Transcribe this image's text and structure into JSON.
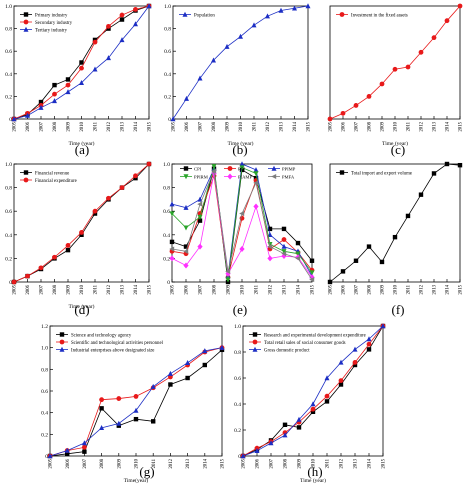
{
  "chart_data": [
    {
      "id": "a",
      "type": "line",
      "panel_label": "(a)",
      "xlabel": "Time (year)",
      "ylabel": "",
      "categories": [
        "2005",
        "2006",
        "2007",
        "2008",
        "2009",
        "2010",
        "2011",
        "2012",
        "2013",
        "2014",
        "2015"
      ],
      "ylim": [
        0,
        1.0
      ],
      "yticks": [
        "0",
        "0.2",
        "0.4",
        "0.6",
        "0.8",
        "1.0"
      ],
      "legend_position": "top-left",
      "series": [
        {
          "name": "Primary industry",
          "color": "#000000",
          "marker": "square",
          "values": [
            0,
            0.04,
            0.15,
            0.3,
            0.35,
            0.5,
            0.7,
            0.8,
            0.88,
            0.96,
            1.0
          ]
        },
        {
          "name": "Secondary industry",
          "color": "#e8191a",
          "marker": "circle",
          "values": [
            0,
            0.05,
            0.12,
            0.22,
            0.3,
            0.45,
            0.68,
            0.82,
            0.92,
            0.97,
            1.0
          ]
        },
        {
          "name": "Tertiary industry",
          "color": "#1c2ec4",
          "marker": "triangle",
          "values": [
            0,
            0.03,
            0.1,
            0.16,
            0.24,
            0.32,
            0.44,
            0.54,
            0.7,
            0.84,
            1.0
          ]
        }
      ]
    },
    {
      "id": "b",
      "type": "line",
      "panel_label": "(b)",
      "xlabel": "Time (year)",
      "ylabel": "",
      "categories": [
        "2005",
        "2006",
        "2007",
        "2008",
        "2009",
        "2010",
        "2011",
        "2012",
        "2013",
        "2014",
        "2015"
      ],
      "ylim": [
        0,
        1.0
      ],
      "yticks": [
        "0",
        "0.2",
        "0.4",
        "0.6",
        "0.8",
        "1.0"
      ],
      "legend_position": "top-left",
      "series": [
        {
          "name": "Population",
          "color": "#1c2ec4",
          "marker": "triangle",
          "values": [
            0,
            0.18,
            0.36,
            0.52,
            0.64,
            0.73,
            0.83,
            0.91,
            0.96,
            0.98,
            1.0
          ]
        }
      ]
    },
    {
      "id": "c",
      "type": "line",
      "panel_label": "(c)",
      "xlabel": "Time (year)",
      "ylabel": "",
      "categories": [
        "2005",
        "2006",
        "2007",
        "2008",
        "2009",
        "2010",
        "2011",
        "2012",
        "2013",
        "2014",
        "2015"
      ],
      "ylim": [
        0,
        1.0
      ],
      "yticks": [],
      "legend_position": "top-left",
      "series": [
        {
          "name": "Investment in the fixed assets",
          "color": "#e8191a",
          "marker": "circle",
          "values": [
            0,
            0.05,
            0.12,
            0.2,
            0.31,
            0.44,
            0.46,
            0.59,
            0.72,
            0.87,
            1.0
          ]
        }
      ]
    },
    {
      "id": "d",
      "type": "line",
      "panel_label": "(d)",
      "xlabel": "Time (year)",
      "ylabel": "",
      "categories": [
        "2005",
        "2006",
        "2007",
        "2008",
        "2009",
        "2010",
        "2011",
        "2012",
        "2013",
        "2014",
        "2015"
      ],
      "ylim": [
        0,
        1.0
      ],
      "yticks": [
        "0",
        "0.2",
        "0.4",
        "0.6",
        "0.8",
        "1.0"
      ],
      "legend_position": "top-left",
      "series": [
        {
          "name": "Financial revenue",
          "color": "#000000",
          "marker": "square",
          "values": [
            0,
            0.05,
            0.11,
            0.2,
            0.27,
            0.4,
            0.58,
            0.7,
            0.8,
            0.88,
            1.0
          ]
        },
        {
          "name": "Financial expenditure",
          "color": "#e8191a",
          "marker": "circle",
          "values": [
            0,
            0.05,
            0.12,
            0.21,
            0.31,
            0.42,
            0.6,
            0.71,
            0.8,
            0.9,
            1.0
          ]
        }
      ]
    },
    {
      "id": "e",
      "type": "line",
      "panel_label": "(e)",
      "xlabel": "",
      "ylabel": "",
      "categories": [
        "2005",
        "2006",
        "2007",
        "2008",
        "2009",
        "2010",
        "2011",
        "2012",
        "2013",
        "2014",
        "2015"
      ],
      "ylim": [
        0,
        1.0
      ],
      "yticks": [
        "0",
        "0.2",
        "0.4",
        "0.6",
        "0.8",
        "1.0"
      ],
      "legend_position": "top",
      "series": [
        {
          "name": "CPI",
          "color": "#000000",
          "marker": "square",
          "values": [
            0.34,
            0.3,
            0.52,
            0.96,
            0.0,
            0.95,
            0.88,
            0.45,
            0.45,
            0.33,
            0.18
          ]
        },
        {
          "name": "RPI",
          "color": "#e8191a",
          "marker": "circle",
          "values": [
            0.26,
            0.24,
            0.58,
            0.9,
            0.04,
            0.54,
            0.86,
            0.28,
            0.36,
            0.25,
            0.1
          ]
        },
        {
          "name": "PPIMP",
          "color": "#1c2ec4",
          "marker": "triangle",
          "values": [
            0.66,
            0.63,
            0.7,
            0.96,
            0.05,
            1.0,
            0.95,
            0.4,
            0.3,
            0.26,
            0.05
          ]
        },
        {
          "name": "PPIRM",
          "color": "#2aa52a",
          "marker": "triangle-down",
          "values": [
            0.58,
            0.46,
            0.55,
            0.98,
            0.02,
            0.97,
            0.92,
            0.32,
            0.26,
            0.24,
            0.08
          ]
        },
        {
          "name": "PIAMP",
          "color": "#ff30ff",
          "marker": "diamond",
          "values": [
            0.2,
            0.14,
            0.3,
            0.92,
            0.07,
            0.28,
            0.64,
            0.2,
            0.22,
            0.21,
            0.04
          ]
        },
        {
          "name": "PMFA",
          "color": "#7d7d7d",
          "marker": "triangle-left",
          "values": [
            0.28,
            0.26,
            0.66,
            0.94,
            0.09,
            0.58,
            0.84,
            0.3,
            0.24,
            0.2,
            0.02
          ]
        }
      ]
    },
    {
      "id": "f",
      "type": "line",
      "panel_label": "(f)",
      "xlabel": "",
      "ylabel": "",
      "categories": [
        "2005",
        "2006",
        "2007",
        "2008",
        "2009",
        "2010",
        "2011",
        "2012",
        "2013",
        "2014",
        "2015"
      ],
      "ylim": [
        0,
        1.0
      ],
      "yticks": [],
      "legend_position": "top-left",
      "series": [
        {
          "name": "Total import and export volume",
          "color": "#000000",
          "marker": "square",
          "values": [
            0,
            0.09,
            0.18,
            0.3,
            0.17,
            0.38,
            0.56,
            0.74,
            0.92,
            1.0,
            0.99
          ]
        }
      ]
    },
    {
      "id": "g",
      "type": "line",
      "panel_label": "(g)",
      "xlabel": "Time(year)",
      "ylabel": "",
      "categories": [
        "2005",
        "2006",
        "2007",
        "2008",
        "2009",
        "2010",
        "2011",
        "2012",
        "2013",
        "2014",
        "2015"
      ],
      "ylim": [
        0,
        1.2
      ],
      "yticks": [
        "0",
        "0.2",
        "0.4",
        "0.6",
        "0.8",
        "1.0",
        "1.2"
      ],
      "legend_position": "top-left",
      "series": [
        {
          "name": "Science and technology agency",
          "color": "#000000",
          "marker": "square",
          "values": [
            0,
            0.02,
            0.04,
            0.44,
            0.28,
            0.34,
            0.32,
            0.66,
            0.72,
            0.84,
            0.98
          ]
        },
        {
          "name": "Scientific and technological activities personnel",
          "color": "#e8191a",
          "marker": "circle",
          "values": [
            0,
            0.05,
            0.08,
            0.52,
            0.53,
            0.55,
            0.63,
            0.73,
            0.84,
            0.96,
            1.0
          ]
        },
        {
          "name": "Industrial enterprises above designated size",
          "color": "#1c2ec4",
          "marker": "triangle",
          "values": [
            0,
            0.05,
            0.12,
            0.26,
            0.3,
            0.42,
            0.64,
            0.76,
            0.86,
            0.97,
            1.0
          ]
        }
      ]
    },
    {
      "id": "h",
      "type": "line",
      "panel_label": "(h)",
      "xlabel": "Time (year)",
      "ylabel": "",
      "categories": [
        "2005",
        "2006",
        "2007",
        "2008",
        "2009",
        "2010",
        "2011",
        "2012",
        "2013",
        "2014",
        "2015"
      ],
      "ylim": [
        0,
        1.0
      ],
      "yticks": [
        "0",
        "0.2",
        "0.4",
        "0.6",
        "0.8",
        "1.0"
      ],
      "legend_position": "top-left",
      "series": [
        {
          "name": "Research and experimental development expenditure",
          "color": "#000000",
          "marker": "square",
          "values": [
            0,
            0.05,
            0.12,
            0.24,
            0.22,
            0.34,
            0.42,
            0.55,
            0.7,
            0.82,
            1.0
          ]
        },
        {
          "name": "Total retail sales of social consumer goods",
          "color": "#e8191a",
          "marker": "circle",
          "values": [
            0,
            0.06,
            0.11,
            0.18,
            0.26,
            0.36,
            0.46,
            0.58,
            0.72,
            0.86,
            1.0
          ]
        },
        {
          "name": "Gross domestic product",
          "color": "#1c2ec4",
          "marker": "triangle",
          "values": [
            0,
            0.04,
            0.1,
            0.16,
            0.28,
            0.4,
            0.6,
            0.72,
            0.82,
            0.9,
            1.0
          ]
        }
      ]
    }
  ]
}
